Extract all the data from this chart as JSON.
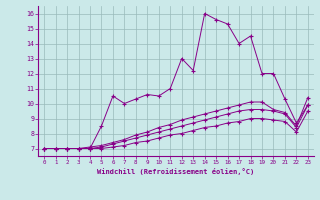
{
  "background_color": "#cbe9e9",
  "line_color": "#880088",
  "grid_color": "#99bbbb",
  "xlabel": "Windchill (Refroidissement éolien,°C)",
  "xlim": [
    -0.5,
    23.5
  ],
  "ylim": [
    6.5,
    16.5
  ],
  "yticks": [
    7,
    8,
    9,
    10,
    11,
    12,
    13,
    14,
    15,
    16
  ],
  "xticks": [
    0,
    1,
    2,
    3,
    4,
    5,
    6,
    7,
    8,
    9,
    10,
    11,
    12,
    13,
    14,
    15,
    16,
    17,
    18,
    19,
    20,
    21,
    22,
    23
  ],
  "series": [
    {
      "x": [
        0,
        1,
        2,
        3,
        4,
        5,
        6,
        7,
        8,
        9,
        10,
        11,
        12,
        13,
        14,
        15,
        16,
        17,
        18,
        19,
        20,
        21,
        22,
        23
      ],
      "y": [
        7,
        7,
        7,
        7,
        7,
        8.5,
        10.5,
        10,
        10.3,
        10.6,
        10.5,
        11,
        13,
        12.2,
        16,
        15.6,
        15.3,
        14,
        14.5,
        12,
        12,
        10.3,
        8.7,
        9.9
      ]
    },
    {
      "x": [
        0,
        1,
        2,
        3,
        4,
        5,
        6,
        7,
        8,
        9,
        10,
        11,
        12,
        13,
        14,
        15,
        16,
        17,
        18,
        19,
        20,
        21,
        22,
        23
      ],
      "y": [
        7,
        7,
        7,
        7,
        7.1,
        7.2,
        7.4,
        7.6,
        7.9,
        8.1,
        8.4,
        8.6,
        8.9,
        9.1,
        9.3,
        9.5,
        9.7,
        9.9,
        10.1,
        10.1,
        9.6,
        9.4,
        8.5,
        10.4
      ]
    },
    {
      "x": [
        0,
        1,
        2,
        3,
        4,
        5,
        6,
        7,
        8,
        9,
        10,
        11,
        12,
        13,
        14,
        15,
        16,
        17,
        18,
        19,
        20,
        21,
        22,
        23
      ],
      "y": [
        7,
        7,
        7,
        7,
        7,
        7.1,
        7.3,
        7.5,
        7.7,
        7.9,
        8.1,
        8.3,
        8.5,
        8.7,
        8.9,
        9.1,
        9.3,
        9.5,
        9.6,
        9.6,
        9.5,
        9.3,
        8.4,
        9.9
      ]
    },
    {
      "x": [
        0,
        1,
        2,
        3,
        4,
        5,
        6,
        7,
        8,
        9,
        10,
        11,
        12,
        13,
        14,
        15,
        16,
        17,
        18,
        19,
        20,
        21,
        22,
        23
      ],
      "y": [
        7,
        7,
        7,
        7,
        7,
        7,
        7.1,
        7.2,
        7.4,
        7.5,
        7.7,
        7.9,
        8.0,
        8.2,
        8.4,
        8.5,
        8.7,
        8.8,
        9.0,
        9.0,
        8.9,
        8.8,
        8.1,
        9.5
      ]
    }
  ]
}
